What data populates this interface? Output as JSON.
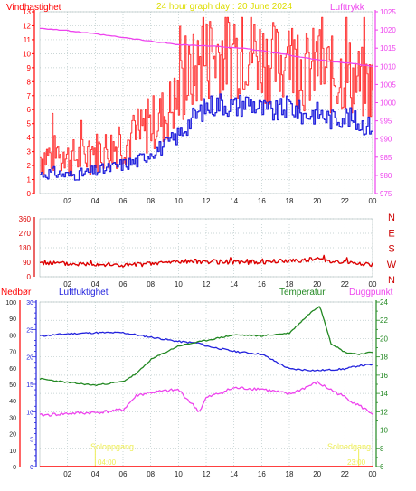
{
  "panels": {
    "top": {
      "title": "24 hour graph day : 20 June 2024",
      "left_label": "Vindhastighet",
      "right_label": "Lufttrykk",
      "left_ticks": [
        "0",
        "1",
        "2",
        "3",
        "4",
        "5",
        "6",
        "7",
        "8",
        "9",
        "10",
        "11",
        "12",
        "13"
      ],
      "right_ticks": [
        "975",
        "980",
        "985",
        "990",
        "995",
        "1000",
        "1005",
        "1010",
        "1015",
        "1020",
        "1025"
      ]
    },
    "middle": {
      "left_ticks": [
        "0",
        "90",
        "180",
        "270",
        "360"
      ],
      "compass": [
        "N",
        "W",
        "S",
        "E",
        "N"
      ]
    },
    "bottom": {
      "label_rain": "Nedbør",
      "label_humidity": "Luftfuktighet",
      "label_temperature": "Temperatur",
      "label_dewpoint": "Duggpunkt",
      "rain_ticks": [
        "0",
        "10",
        "20",
        "30",
        "40",
        "50",
        "60",
        "70",
        "80",
        "90",
        "100"
      ],
      "humidity_ticks": [
        "0",
        "5",
        "10",
        "15",
        "20",
        "25",
        "30"
      ],
      "temp_ticks": [
        "6",
        "8",
        "10",
        "12",
        "14",
        "16",
        "18",
        "20",
        "22",
        "24"
      ],
      "sunrise_label": "Soloppgang",
      "sunset_label": "Solnedgang",
      "sunrise_time": "04:00",
      "sunset_time": "23:00"
    }
  },
  "x_ticks": [
    "02",
    "04",
    "06",
    "08",
    "10",
    "12",
    "14",
    "16",
    "18",
    "20",
    "22",
    "00"
  ],
  "colors": {
    "red": "#ff0000",
    "gust": "#ff3333",
    "blue": "#2222dd",
    "magenta": "#ee44ee",
    "green": "#228822",
    "dirred": "#dd0000",
    "sun": "#eeee55",
    "grid": "#b8c8c8",
    "title": "#dddd00"
  },
  "chart_data": [
    {
      "type": "line",
      "title": "24 hour graph day : 20 June 2024",
      "x_unit": "hour",
      "xlim": [
        0,
        24
      ],
      "series": [
        {
          "name": "Vindhastighet",
          "axis": "left",
          "ylim": [
            0,
            13
          ],
          "x": [
            0,
            1,
            2,
            3,
            4,
            5,
            6,
            7,
            8,
            9,
            10,
            11,
            12,
            13,
            14,
            15,
            16,
            17,
            18,
            19,
            20,
            21,
            22,
            23,
            24
          ],
          "y": [
            1.4,
            1.5,
            1.3,
            1.4,
            1.6,
            1.8,
            2.1,
            2.3,
            3.0,
            3.4,
            4.2,
            5.4,
            6.2,
            6.5,
            6.2,
            6.6,
            6.0,
            5.8,
            6.3,
            5.6,
            5.8,
            5.3,
            5.6,
            5.0,
            4.8
          ]
        },
        {
          "axis": "left",
          "ylim": [
            0,
            13
          ],
          "x": [
            0,
            1,
            2,
            3,
            4,
            5,
            6,
            7,
            8,
            9,
            10,
            11,
            12,
            13,
            14,
            15,
            16,
            17,
            18,
            19,
            20,
            21,
            22,
            23,
            24
          ],
          "y": [
            2.6,
            2.8,
            2.5,
            2.6,
            3.0,
            3.2,
            3.6,
            3.9,
            5.0,
            5.6,
            7.0,
            8.6,
            9.6,
            10.2,
            9.8,
            10.5,
            9.8,
            9.2,
            9.8,
            8.7,
            9.1,
            8.4,
            8.6,
            7.9,
            7.5
          ]
        },
        {
          "name": "Lufttrykk",
          "axis": "right",
          "ylim": [
            975,
            1025
          ],
          "x": [
            0,
            2,
            4,
            6,
            8,
            10,
            12,
            14,
            16,
            18,
            20,
            22,
            24
          ],
          "y": [
            1020.5,
            1019.8,
            1018.9,
            1017.9,
            1016.9,
            1016.0,
            1015.6,
            1015.2,
            1014.3,
            1013.1,
            1011.8,
            1011.0,
            1010.0
          ]
        }
      ]
    },
    {
      "type": "line",
      "ylim": [
        0,
        360
      ],
      "xlim": [
        0,
        24
      ],
      "series": [
        {
          "axis": "left",
          "x": [
            0,
            2,
            4,
            6,
            8,
            10,
            12,
            14,
            16,
            18,
            20,
            22,
            24
          ],
          "y": [
            90,
            80,
            80,
            70,
            80,
            95,
            95,
            90,
            90,
            100,
            110,
            90,
            75
          ]
        }
      ]
    },
    {
      "type": "line",
      "xlim": [
        0,
        24
      ],
      "series": [
        {
          "name": "Nedbør",
          "axis": "left-outer",
          "ylim": [
            0,
            100
          ],
          "x": [
            0,
            24
          ],
          "y": [
            0,
            0
          ]
        },
        {
          "name": "Luftfuktighet",
          "axis": "left-inner",
          "ylim": [
            0,
            30
          ],
          "x": [
            0,
            2,
            4,
            6,
            8,
            10,
            11.5,
            12,
            14,
            16,
            18,
            20,
            22,
            23,
            24
          ],
          "y": [
            23.8,
            24.2,
            24.4,
            24.4,
            23.6,
            22.8,
            22.5,
            22.0,
            21.0,
            20.5,
            17.8,
            17.5,
            17.8,
            18.4,
            18.6
          ]
        },
        {
          "name": "Temperatur",
          "axis": "right",
          "ylim": [
            6,
            24
          ],
          "x": [
            0,
            2,
            4,
            6,
            7,
            8,
            10,
            12,
            14,
            16,
            18,
            19.5,
            20.2,
            21,
            22,
            23,
            24
          ],
          "y": [
            15.6,
            15.2,
            14.9,
            15.3,
            16.2,
            17.7,
            19.2,
            19.8,
            20.4,
            20.3,
            20.6,
            22.8,
            23.6,
            19.5,
            18.5,
            18.3,
            18.5
          ]
        },
        {
          "name": "Duggpunkt",
          "axis": "right",
          "ylim": [
            6,
            24
          ],
          "x": [
            0,
            2,
            4,
            6,
            7,
            8,
            10,
            11.5,
            12,
            14,
            16,
            18,
            20,
            22,
            23,
            24
          ],
          "y": [
            11.6,
            11.8,
            11.9,
            12.2,
            13.8,
            14.1,
            14.4,
            12.0,
            13.5,
            14.6,
            14.5,
            13.9,
            15.2,
            13.6,
            12.7,
            11.8
          ]
        }
      ]
    }
  ]
}
